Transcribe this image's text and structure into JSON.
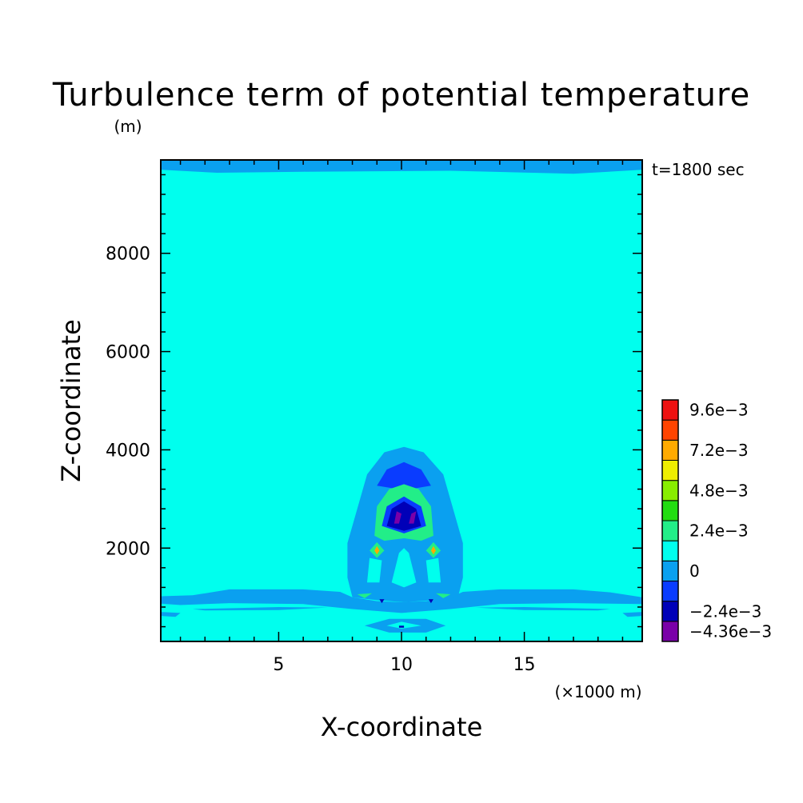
{
  "chart_data": {
    "type": "contour",
    "title": "Turbulence term of potential temperature",
    "time_label": "t=1800 sec",
    "x_axis": {
      "label": "X-coordinate",
      "unit_note": "(×1000 m)",
      "range": [
        0.2,
        19.8
      ],
      "major_ticks": [
        5,
        10,
        15
      ],
      "tick_labels": [
        "5",
        "10",
        "15"
      ],
      "minor_step": 1
    },
    "y_axis": {
      "label": "Z-coordinate",
      "unit_note": "(m)",
      "range": [
        100,
        9900
      ],
      "major_ticks": [
        2000,
        4000,
        6000,
        8000
      ],
      "tick_labels": [
        "2000",
        "4000",
        "6000",
        "8000"
      ],
      "minor_step": 400
    },
    "background_level_color": "#00ffee",
    "colorbar": {
      "levels": [
        {
          "color": "#7a00a8",
          "label": "−4.36e−3"
        },
        {
          "color": "#0000b8",
          "label": "−2.4e−3"
        },
        {
          "color": "#0a3cff",
          "label": ""
        },
        {
          "color": "#0aa0f0",
          "label": "0"
        },
        {
          "color": "#00ffee",
          "label": ""
        },
        {
          "color": "#22ee88",
          "label": "2.4e−3"
        },
        {
          "color": "#22dd11",
          "label": ""
        },
        {
          "color": "#88ee00",
          "label": "4.8e−3"
        },
        {
          "color": "#eeee00",
          "label": ""
        },
        {
          "color": "#ffaa00",
          "label": "7.2e−3"
        },
        {
          "color": "#ff4400",
          "label": ""
        },
        {
          "color": "#ee1111",
          "label": "9.6e−3"
        }
      ]
    },
    "regions": [
      {
        "name": "top-boundary-layer",
        "level": 3,
        "pts": [
          [
            0.2,
            9900
          ],
          [
            19.8,
            9900
          ],
          [
            19.8,
            9700
          ],
          [
            17,
            9620
          ],
          [
            12,
            9680
          ],
          [
            6,
            9660
          ],
          [
            2.5,
            9640
          ],
          [
            0.2,
            9700
          ]
        ]
      },
      {
        "name": "low-level-band",
        "level": 3,
        "pts": [
          [
            0.2,
            1020
          ],
          [
            1.5,
            1040
          ],
          [
            3,
            1160
          ],
          [
            6,
            1160
          ],
          [
            7.5,
            1110
          ],
          [
            8,
            1000
          ],
          [
            9,
            920
          ],
          [
            10,
            900
          ],
          [
            11,
            920
          ],
          [
            12,
            1000
          ],
          [
            12.5,
            1110
          ],
          [
            14,
            1160
          ],
          [
            17,
            1160
          ],
          [
            18.5,
            1100
          ],
          [
            19.8,
            1000
          ],
          [
            19.8,
            860
          ],
          [
            17,
            880
          ],
          [
            14,
            860
          ],
          [
            12,
            760
          ],
          [
            10,
            680
          ],
          [
            8,
            760
          ],
          [
            6,
            860
          ],
          [
            3,
            880
          ],
          [
            1,
            840
          ],
          [
            0.2,
            870
          ]
        ]
      },
      {
        "name": "surface-patch-left",
        "level": 3,
        "pts": [
          [
            0.2,
            700
          ],
          [
            1,
            680
          ],
          [
            0.8,
            600
          ],
          [
            0.2,
            620
          ]
        ]
      },
      {
        "name": "surface-patch-right",
        "level": 3,
        "pts": [
          [
            19.8,
            700
          ],
          [
            19,
            680
          ],
          [
            19.2,
            600
          ],
          [
            19.8,
            620
          ]
        ]
      },
      {
        "name": "low-strip-left",
        "level": 3,
        "pts": [
          [
            1.5,
            760
          ],
          [
            5,
            800
          ],
          [
            7,
            790
          ],
          [
            5,
            740
          ],
          [
            2,
            730
          ]
        ]
      },
      {
        "name": "low-strip-right",
        "level": 3,
        "pts": [
          [
            13,
            790
          ],
          [
            15,
            800
          ],
          [
            18.5,
            760
          ],
          [
            18,
            730
          ],
          [
            15,
            740
          ]
        ]
      },
      {
        "name": "surface-ring",
        "level": 3,
        "pts": [
          [
            8.5,
            420
          ],
          [
            9.5,
            560
          ],
          [
            11,
            560
          ],
          [
            11.8,
            420
          ],
          [
            11,
            280
          ],
          [
            9.5,
            280
          ]
        ]
      },
      {
        "name": "surface-ring-inner",
        "level": 4,
        "pts": [
          [
            9.4,
            420
          ],
          [
            10,
            500
          ],
          [
            10.8,
            420
          ],
          [
            10,
            360
          ]
        ]
      },
      {
        "name": "surface-dot",
        "level": 1,
        "pts": [
          [
            9.9,
            420
          ],
          [
            10.1,
            420
          ],
          [
            10.1,
            380
          ],
          [
            9.9,
            380
          ]
        ]
      },
      {
        "name": "plume-outer",
        "level": 3,
        "pts": [
          [
            8,
            1000
          ],
          [
            7.8,
            1400
          ],
          [
            7.8,
            2100
          ],
          [
            8.2,
            2800
          ],
          [
            8.6,
            3500
          ],
          [
            9.3,
            3950
          ],
          [
            10.1,
            4060
          ],
          [
            10.9,
            3950
          ],
          [
            11.7,
            3500
          ],
          [
            12.1,
            2800
          ],
          [
            12.5,
            2100
          ],
          [
            12.5,
            1400
          ],
          [
            12.3,
            1000
          ],
          [
            11.3,
            940
          ],
          [
            10.1,
            900
          ],
          [
            9,
            940
          ]
        ]
      },
      {
        "name": "plume-cap-dark",
        "level": 2,
        "pts": [
          [
            9,
            3270
          ],
          [
            9.4,
            3600
          ],
          [
            10.1,
            3750
          ],
          [
            10.8,
            3600
          ],
          [
            11.2,
            3270
          ],
          [
            10.1,
            3180
          ]
        ]
      },
      {
        "name": "plume-cap-green",
        "level": 5,
        "pts": [
          [
            8.9,
            2250
          ],
          [
            9,
            2850
          ],
          [
            9.5,
            3200
          ],
          [
            10.1,
            3300
          ],
          [
            10.7,
            3200
          ],
          [
            11.2,
            2850
          ],
          [
            11.3,
            2250
          ],
          [
            10.8,
            2150
          ],
          [
            10.1,
            2200
          ],
          [
            9.3,
            2150
          ]
        ]
      },
      {
        "name": "plume-core-blue",
        "level": 2,
        "pts": [
          [
            9.2,
            2450
          ],
          [
            9.4,
            2850
          ],
          [
            10.1,
            3050
          ],
          [
            10.8,
            2850
          ],
          [
            11,
            2450
          ],
          [
            10.1,
            2300
          ]
        ]
      },
      {
        "name": "plume-core-navy",
        "level": 1,
        "pts": [
          [
            9.4,
            2450
          ],
          [
            9.6,
            2800
          ],
          [
            10.1,
            2950
          ],
          [
            10.6,
            2800
          ],
          [
            10.8,
            2450
          ],
          [
            10.1,
            2350
          ]
        ]
      },
      {
        "name": "plume-core-violet-left",
        "level": 0,
        "pts": [
          [
            9.7,
            2500
          ],
          [
            9.8,
            2750
          ],
          [
            10,
            2700
          ],
          [
            9.9,
            2500
          ]
        ]
      },
      {
        "name": "plume-core-violet-right",
        "level": 0,
        "pts": [
          [
            10.3,
            2500
          ],
          [
            10.4,
            2700
          ],
          [
            10.6,
            2750
          ],
          [
            10.5,
            2500
          ]
        ]
      },
      {
        "name": "plume-stem",
        "level": 4,
        "pts": [
          [
            9.6,
            1300
          ],
          [
            9.9,
            1900
          ],
          [
            10.1,
            2000
          ],
          [
            10.3,
            1900
          ],
          [
            10.6,
            1300
          ],
          [
            10.1,
            1200
          ]
        ]
      },
      {
        "name": "plume-stem-gap-left",
        "level": 4,
        "pts": [
          [
            8.6,
            1300
          ],
          [
            8.7,
            1800
          ],
          [
            9.2,
            1750
          ],
          [
            9.1,
            1300
          ]
        ]
      },
      {
        "name": "plume-stem-gap-right",
        "level": 4,
        "pts": [
          [
            11.1,
            1300
          ],
          [
            11,
            1750
          ],
          [
            11.5,
            1800
          ],
          [
            11.6,
            1300
          ]
        ]
      },
      {
        "name": "hotspot-left-ring",
        "level": 5,
        "pts": [
          [
            8.7,
            1950
          ],
          [
            9,
            2120
          ],
          [
            9.3,
            1950
          ],
          [
            9,
            1800
          ]
        ]
      },
      {
        "name": "hotspot-left-core",
        "level": 9,
        "pts": [
          [
            8.9,
            1950
          ],
          [
            9,
            2040
          ],
          [
            9.1,
            1950
          ],
          [
            9,
            1870
          ]
        ]
      },
      {
        "name": "hotspot-right-ring",
        "level": 5,
        "pts": [
          [
            11,
            1950
          ],
          [
            11.3,
            2120
          ],
          [
            11.6,
            1950
          ],
          [
            11.3,
            1800
          ]
        ]
      },
      {
        "name": "hotspot-right-core",
        "level": 9,
        "pts": [
          [
            11.2,
            1950
          ],
          [
            11.3,
            2040
          ],
          [
            11.4,
            1950
          ],
          [
            11.3,
            1870
          ]
        ]
      },
      {
        "name": "low-green-left",
        "level": 5,
        "pts": [
          [
            8.2,
            1060
          ],
          [
            8.8,
            1080
          ],
          [
            8.5,
            980
          ]
        ]
      },
      {
        "name": "low-green-right",
        "level": 5,
        "pts": [
          [
            11.4,
            1080
          ],
          [
            12,
            1060
          ],
          [
            11.7,
            980
          ]
        ]
      },
      {
        "name": "low-navy-left",
        "level": 1,
        "pts": [
          [
            9.1,
            960
          ],
          [
            9.3,
            960
          ],
          [
            9.2,
            880
          ]
        ]
      },
      {
        "name": "low-navy-right",
        "level": 1,
        "pts": [
          [
            11.1,
            960
          ],
          [
            11.3,
            960
          ],
          [
            11.2,
            880
          ]
        ]
      }
    ]
  }
}
